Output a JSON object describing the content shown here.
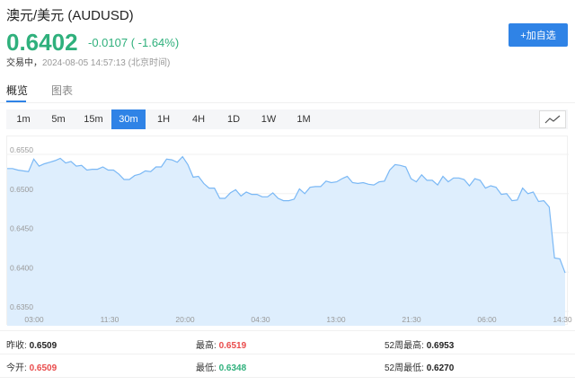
{
  "header": {
    "title": "澳元/美元  (AUDUSD)",
    "price": "0.6402",
    "change": "-0.0107 ( -1.64%)",
    "status_label": "交易中，",
    "timestamp": "2024-08-05 14:57:13 (北京时间)",
    "add_button": "+加自选"
  },
  "tabs": [
    {
      "label": "概览",
      "active": true
    },
    {
      "label": "图表",
      "active": false
    }
  ],
  "periods": [
    "1m",
    "5m",
    "15m",
    "30m",
    "1H",
    "4H",
    "1D",
    "1W",
    "1M"
  ],
  "active_period": "30m",
  "icons": {
    "chart_type": "line-chart-icon"
  },
  "colors": {
    "up": "#e94b4b",
    "down": "#2fb07c",
    "accent": "#2f83e6",
    "line": "#7ab8f5",
    "fill": "#deeefd"
  },
  "chart_data": {
    "type": "area",
    "ylim": [
      0.635,
      0.6565
    ],
    "yticks": [
      "0.6550",
      "0.6500",
      "0.6450",
      "0.6400",
      "0.6350"
    ],
    "xticks": [
      "03:00",
      "11:30",
      "20:00",
      "04:30",
      "13:00",
      "21:30",
      "06:00",
      "14:30"
    ],
    "grid": true,
    "values": [
      0.6532,
      0.6532,
      0.653,
      0.6529,
      0.6528,
      0.6544,
      0.6535,
      0.6538,
      0.654,
      0.6542,
      0.6545,
      0.6539,
      0.6541,
      0.6535,
      0.6536,
      0.653,
      0.6531,
      0.6531,
      0.6534,
      0.653,
      0.653,
      0.6525,
      0.6518,
      0.6518,
      0.6523,
      0.6525,
      0.6529,
      0.6528,
      0.6534,
      0.6534,
      0.6544,
      0.6543,
      0.654,
      0.6547,
      0.6537,
      0.6521,
      0.6522,
      0.6513,
      0.6507,
      0.6507,
      0.6494,
      0.6494,
      0.6501,
      0.6505,
      0.6497,
      0.6502,
      0.6499,
      0.6499,
      0.6496,
      0.6496,
      0.6501,
      0.6494,
      0.6491,
      0.6491,
      0.6493,
      0.6506,
      0.65,
      0.6508,
      0.6509,
      0.6509,
      0.6516,
      0.6514,
      0.6515,
      0.6519,
      0.6522,
      0.6514,
      0.6513,
      0.6514,
      0.6512,
      0.6511,
      0.6515,
      0.6516,
      0.653,
      0.6537,
      0.6536,
      0.6534,
      0.6519,
      0.6515,
      0.6524,
      0.6517,
      0.6517,
      0.6511,
      0.6522,
      0.6515,
      0.652,
      0.652,
      0.6518,
      0.651,
      0.6519,
      0.6517,
      0.6507,
      0.651,
      0.6508,
      0.6499,
      0.65,
      0.6491,
      0.6492,
      0.6507,
      0.65,
      0.6502,
      0.649,
      0.6491,
      0.6483,
      0.6418,
      0.6417,
      0.6399
    ]
  },
  "stats": [
    {
      "label": "昨收:",
      "value": "0.6509",
      "color": "blk"
    },
    {
      "label": "最高:",
      "value": "0.6519",
      "color": "red"
    },
    {
      "label": "52周最高:",
      "value": "0.6953",
      "color": "blk"
    },
    {
      "label": "今开:",
      "value": "0.6509",
      "color": "red"
    },
    {
      "label": "最低:",
      "value": "0.6348",
      "color": "grn"
    },
    {
      "label": "52周最低:",
      "value": "0.6270",
      "color": "blk"
    }
  ]
}
